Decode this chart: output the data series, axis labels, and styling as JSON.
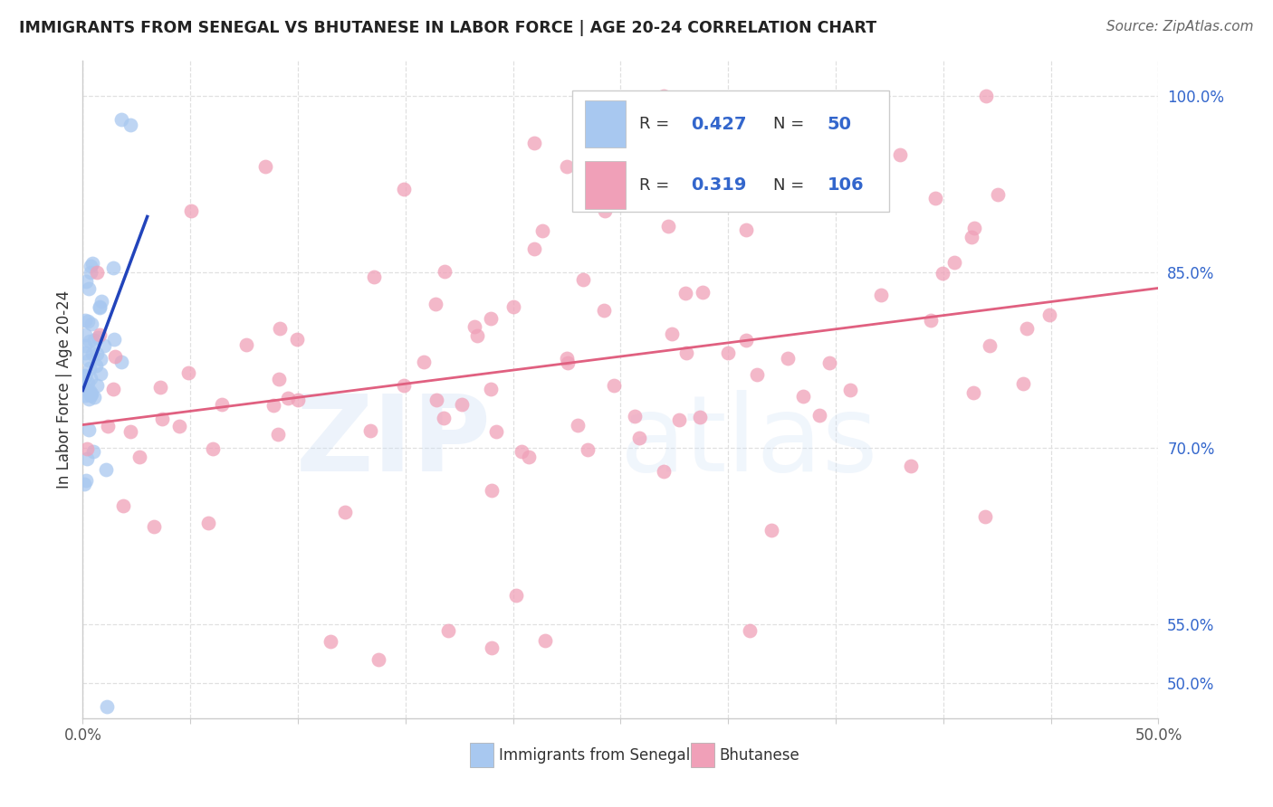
{
  "title": "IMMIGRANTS FROM SENEGAL VS BHUTANESE IN LABOR FORCE | AGE 20-24 CORRELATION CHART",
  "source": "Source: ZipAtlas.com",
  "ylabel": "In Labor Force | Age 20-24",
  "xlim": [
    0.0,
    0.5
  ],
  "ylim": [
    0.47,
    1.03
  ],
  "right_yticks": [
    0.5,
    0.55,
    0.7,
    0.85,
    1.0
  ],
  "right_yticklabels": [
    "50.0%",
    "55.0%",
    "70.0%",
    "85.0%",
    "100.0%"
  ],
  "R_senegal": 0.427,
  "N_senegal": 50,
  "R_bhutanese": 0.319,
  "N_bhutanese": 106,
  "blue_color": "#A8C8F0",
  "pink_color": "#F0A0B8",
  "blue_line_color": "#2244BB",
  "pink_line_color": "#E06080",
  "grid_color": "#E0E0E0",
  "spine_color": "#CCCCCC",
  "title_color": "#222222",
  "source_color": "#666666",
  "ylabel_color": "#333333",
  "xtick_color": "#555555",
  "ytick_color": "#3366CC",
  "legend_text_color": "#333333",
  "legend_value_color": "#3366CC",
  "watermark_color1": "#CCDFF5",
  "watermark_color2": "#CCDFF5"
}
